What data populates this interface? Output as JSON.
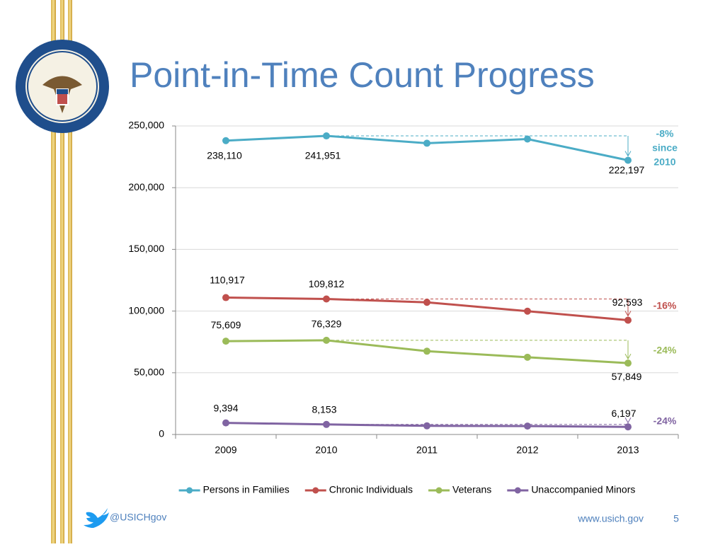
{
  "chart_data": {
    "type": "line",
    "title": "Point-in-Time Count Progress",
    "categories": [
      "2009",
      "2010",
      "2011",
      "2012",
      "2013"
    ],
    "ylim": [
      0,
      250000
    ],
    "yticks": [
      0,
      {
        "value": 50000,
        "label": "50,000"
      },
      {
        "value": 100000,
        "label": "100,000"
      },
      {
        "value": 150000,
        "label": "150,000"
      },
      {
        "value": 200000,
        "label": "200,000"
      },
      {
        "value": 250000,
        "label": "250,000"
      }
    ],
    "grid": true,
    "legend": "bottom",
    "series": [
      {
        "name": "Persons in Families",
        "color": "#4bacc6",
        "values": [
          238110,
          241951,
          236000,
          239400,
          222197
        ],
        "value_labels": [
          "238,110",
          "241,951",
          null,
          null,
          "222,197"
        ],
        "annotation": [
          "-8%",
          "since",
          "2010"
        ]
      },
      {
        "name": "Chronic Individuals",
        "color": "#c0504d",
        "values": [
          110917,
          109812,
          107100,
          99900,
          92593
        ],
        "value_labels": [
          "110,917",
          "109,812",
          null,
          null,
          "92,593"
        ],
        "annotation": [
          "-16%"
        ]
      },
      {
        "name": "Veterans",
        "color": "#9bbb59",
        "values": [
          75609,
          76329,
          67500,
          62600,
          57849
        ],
        "value_labels": [
          "75,609",
          "76,329",
          null,
          null,
          "57,849"
        ],
        "annotation": [
          "-24%"
        ]
      },
      {
        "name": "Unaccompanied Minors",
        "color": "#8064a2",
        "values": [
          9394,
          8153,
          7000,
          6800,
          6197
        ],
        "value_labels": [
          "9,394",
          "8,153",
          null,
          null,
          "6,197"
        ],
        "annotation": [
          "-24%"
        ]
      }
    ]
  },
  "footer": {
    "twitter": "@USICHgov",
    "url": "www.usich.gov",
    "page": "5"
  }
}
